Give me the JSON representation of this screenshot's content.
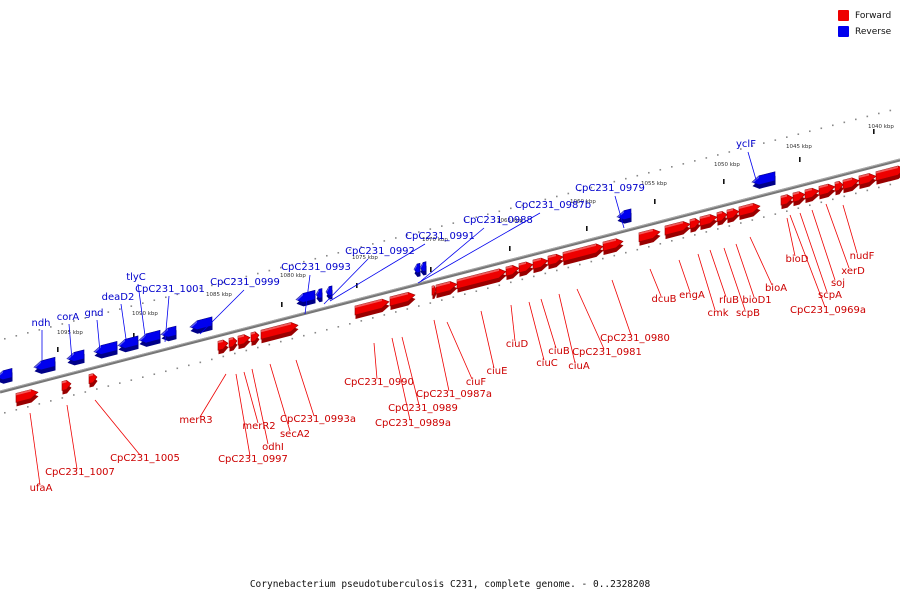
{
  "legend": [
    {
      "label": "Forward",
      "color": "#ee0000"
    },
    {
      "label": "Reverse",
      "color": "#0000ee"
    }
  ],
  "caption": "Corynebacterium pseudotuberculosis C231, complete genome. - 0..2328208",
  "colors": {
    "forward": "#ee0000",
    "reverse": "#0000ee",
    "backbone": "#777777"
  },
  "ticks": [
    {
      "label": "1040 kbp",
      "kbp": 1040
    },
    {
      "label": "1045 kbp",
      "kbp": 1045
    },
    {
      "label": "1050 kbp",
      "kbp": 1050
    },
    {
      "label": "1055 kbp",
      "kbp": 1055
    },
    {
      "label": "1060 kbp",
      "kbp": 1060
    },
    {
      "label": "1065 kbp",
      "kbp": 1065
    },
    {
      "label": "1070 kbp",
      "kbp": 1070
    },
    {
      "label": "1075 kbp",
      "kbp": 1075
    },
    {
      "label": "1080 kbp",
      "kbp": 1080
    },
    {
      "label": "1085 kbp",
      "kbp": 1085
    },
    {
      "label": "1090 kbp",
      "kbp": 1090
    },
    {
      "label": "1095 kbp",
      "kbp": 1095
    }
  ],
  "reverse_labels": [
    "ndh",
    "corA",
    "gnd",
    "deaD2",
    "tlyC",
    "CpC231_1001",
    "CpC231_0999",
    "CpC231_0993",
    "CpC231_0992",
    "CpC231_0991",
    "CpC231_0988",
    "CpC231_0987b",
    "CpC231_0979",
    "yclF"
  ],
  "forward_labels": [
    "ufaA",
    "CpC231_1007",
    "CpC231_1005",
    "merR3",
    "CpC231_0997",
    "merR2",
    "odhI",
    "secA2",
    "CpC231_0993a",
    "CpC231_0990",
    "CpC231_0989a",
    "CpC231_0989",
    "CpC231_0987a",
    "ciuF",
    "ciuE",
    "ciuD",
    "ciuC",
    "ciuB",
    "ciuA",
    "CpC231_0981",
    "CpC231_0980",
    "dcuB",
    "engA",
    "cmk",
    "rluB",
    "scpB",
    "bioD1",
    "bioA",
    "bioD",
    "scpA",
    "soj",
    "CpC231_0969a",
    "xerD",
    "nudF"
  ]
}
